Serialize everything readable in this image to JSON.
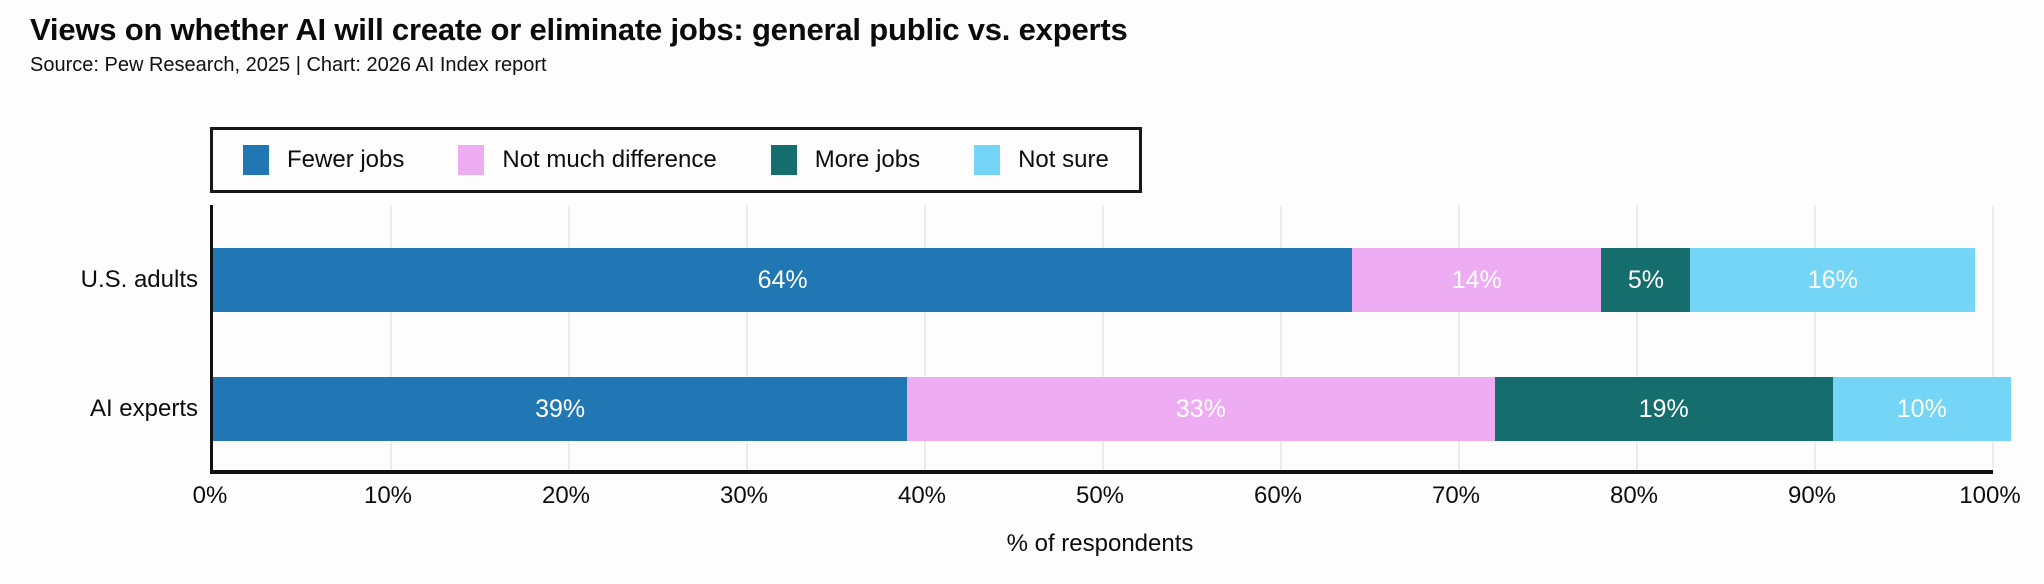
{
  "title": "Views on whether AI will create or eliminate jobs: general public vs. experts",
  "subtitle": "Source: Pew Research, 2025 | Chart: 2026 AI Index report",
  "chart_data": {
    "type": "bar",
    "orientation": "horizontal",
    "stacked": true,
    "title": "Views on whether AI will create or eliminate jobs: general public vs. experts",
    "xlabel": "% of respondents",
    "ylabel": "",
    "xlim": [
      0,
      100
    ],
    "grid": true,
    "legend_position": "top",
    "categories": [
      "U.S. adults",
      "AI experts"
    ],
    "series": [
      {
        "name": "Fewer jobs",
        "color": "#2077b4",
        "values": [
          64,
          39
        ]
      },
      {
        "name": "Not much difference",
        "color": "#eeadf2",
        "values": [
          14,
          33
        ]
      },
      {
        "name": "More jobs",
        "color": "#156e6d",
        "values": [
          5,
          19
        ]
      },
      {
        "name": "Not sure",
        "color": "#75d5f6",
        "values": [
          16,
          10
        ]
      }
    ],
    "value_suffix": "%",
    "x_ticks": [
      "0%",
      "10%",
      "20%",
      "30%",
      "40%",
      "50%",
      "60%",
      "70%",
      "80%",
      "90%",
      "100%"
    ],
    "x_tick_values": [
      0,
      10,
      20,
      30,
      40,
      50,
      60,
      70,
      80,
      90,
      100
    ]
  }
}
